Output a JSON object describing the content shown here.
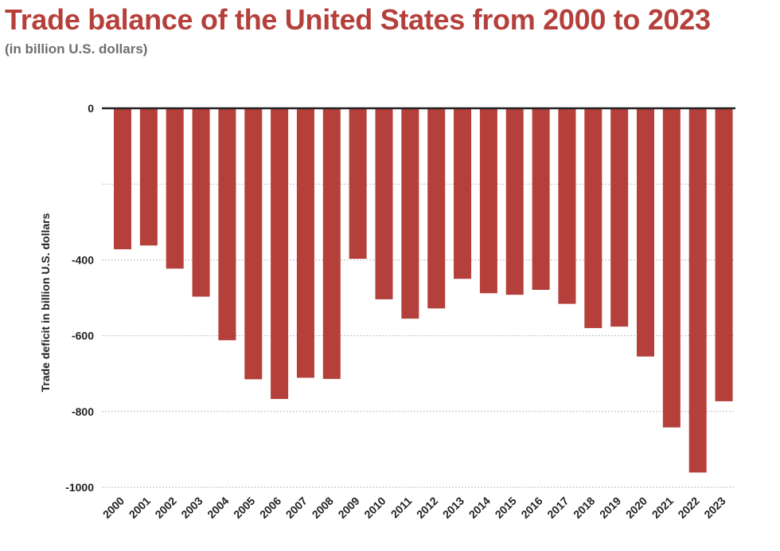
{
  "chart_data": {
    "type": "bar",
    "title": "Trade balance of the United States from 2000 to 2023",
    "subtitle": "(in billion U.S. dollars)",
    "ylabel": "Trade deficit in billion U.S. dollars",
    "xlabel": "",
    "categories": [
      "2000",
      "2001",
      "2002",
      "2003",
      "2004",
      "2005",
      "2006",
      "2007",
      "2008",
      "2009",
      "2010",
      "2011",
      "2012",
      "2013",
      "2014",
      "2015",
      "2016",
      "2017",
      "2018",
      "2019",
      "2020",
      "2021",
      "2022",
      "2023"
    ],
    "values": [
      -372,
      -362,
      -423,
      -497,
      -612,
      -715,
      -767,
      -711,
      -714,
      -397,
      -504,
      -555,
      -528,
      -450,
      -488,
      -492,
      -479,
      -516,
      -580,
      -576,
      -655,
      -842,
      -961,
      -773
    ],
    "yticks": [
      0,
      -200,
      -400,
      -600,
      -800,
      -1000
    ],
    "ytick_labels": [
      "0",
      "",
      "-400",
      "-600",
      "-800",
      "-1000"
    ],
    "ylim": [
      -1000,
      0
    ],
    "grid": true,
    "legend": "none",
    "colors": {
      "bar": "#b5403b",
      "title": "#b5403b",
      "subtitle": "#6e6e6e",
      "text": "#222222",
      "grid": "#bdbdbd",
      "axis": "#222222"
    }
  }
}
